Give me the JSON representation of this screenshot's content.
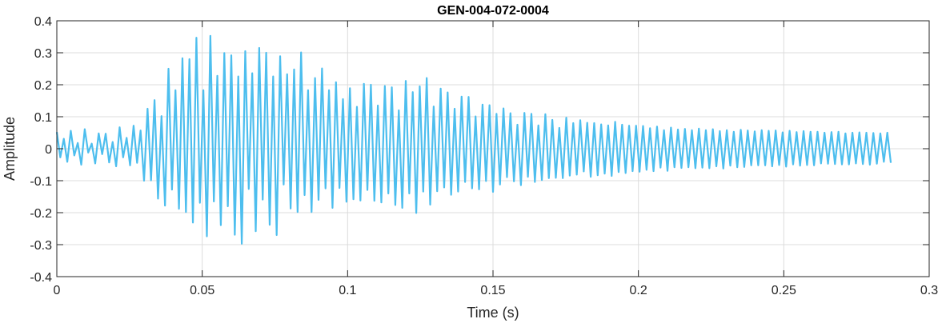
{
  "chart_data": {
    "type": "line",
    "title": "GEN-004-072-0004",
    "xlabel": "Time (s)",
    "ylabel": "Amplitude",
    "xlim": [
      0,
      0.3
    ],
    "ylim": [
      -0.4,
      0.4
    ],
    "xticks": [
      0,
      0.05,
      0.1,
      0.15,
      0.2,
      0.25,
      0.3
    ],
    "xtick_labels": [
      "0",
      "0.05",
      "0.1",
      "0.15",
      "0.2",
      "0.25",
      "0.3"
    ],
    "yticks": [
      -0.4,
      -0.3,
      -0.2,
      -0.1,
      0,
      0.1,
      0.2,
      0.3,
      0.4
    ],
    "ytick_labels": [
      "-0.4",
      "-0.3",
      "-0.2",
      "-0.1",
      "0",
      "0.1",
      "0.2",
      "0.3",
      "0.4"
    ],
    "grid": true,
    "box": true,
    "line_color": "#4DBEEE",
    "series": [
      {
        "x": [
          0.0,
          0.0012,
          0.0024,
          0.0036,
          0.0048,
          0.006,
          0.0072,
          0.0084,
          0.0096,
          0.0108,
          0.012,
          0.0132,
          0.0144,
          0.0156,
          0.0168,
          0.018,
          0.0192,
          0.0204,
          0.0216,
          0.0228,
          0.024,
          0.0252,
          0.0264,
          0.0276,
          0.0288,
          0.03,
          0.0312,
          0.0324,
          0.0336,
          0.0348,
          0.036,
          0.0372,
          0.0384,
          0.0396,
          0.0408,
          0.042,
          0.0432,
          0.0444,
          0.0456,
          0.0468,
          0.048,
          0.0492,
          0.0504,
          0.0516,
          0.0528,
          0.054,
          0.0552,
          0.0564,
          0.0576,
          0.0588,
          0.06,
          0.0612,
          0.0624,
          0.0636,
          0.0648,
          0.066,
          0.0672,
          0.0684,
          0.0696,
          0.0708,
          0.072,
          0.0732,
          0.0744,
          0.0756,
          0.0768,
          0.078,
          0.0792,
          0.0804,
          0.0816,
          0.0828,
          0.084,
          0.0852,
          0.0864,
          0.0876,
          0.0888,
          0.09,
          0.0912,
          0.0924,
          0.0936,
          0.0948,
          0.096,
          0.0972,
          0.0984,
          0.0996,
          0.1008,
          0.102,
          0.1032,
          0.1044,
          0.1056,
          0.1068,
          0.108,
          0.1092,
          0.1104,
          0.1116,
          0.1128,
          0.114,
          0.1152,
          0.1164,
          0.1176,
          0.1188,
          0.12,
          0.1212,
          0.1224,
          0.1236,
          0.1248,
          0.126,
          0.1272,
          0.1284,
          0.1296,
          0.1308,
          0.132,
          0.1332,
          0.1344,
          0.1356,
          0.1368,
          0.138,
          0.1392,
          0.1404,
          0.1416,
          0.1428,
          0.144,
          0.1452,
          0.1464,
          0.1476,
          0.1488,
          0.15,
          0.1512,
          0.1524,
          0.1536,
          0.1548,
          0.156,
          0.1572,
          0.1584,
          0.1596,
          0.1608,
          0.162,
          0.1632,
          0.1644,
          0.1656,
          0.1668,
          0.168,
          0.1692,
          0.1704,
          0.1716,
          0.1728,
          0.174,
          0.1752,
          0.1764,
          0.1776,
          0.1788,
          0.18,
          0.1812,
          0.1824,
          0.1836,
          0.1848,
          0.186,
          0.1872,
          0.1884,
          0.1896,
          0.1908,
          0.192,
          0.1932,
          0.1944,
          0.1956,
          0.1968,
          0.198,
          0.1992,
          0.2004,
          0.2016,
          0.2028,
          0.204,
          0.2052,
          0.2064,
          0.2076,
          0.2088,
          0.21,
          0.2112,
          0.2124,
          0.2136,
          0.2148,
          0.216,
          0.2172,
          0.2184,
          0.2196,
          0.2208,
          0.222,
          0.2232,
          0.2244,
          0.2256,
          0.2268,
          0.228,
          0.2292,
          0.2304,
          0.2316,
          0.2328,
          0.234,
          0.2352,
          0.2364,
          0.2376,
          0.2388,
          0.24,
          0.2412,
          0.2424,
          0.2436,
          0.2448,
          0.246,
          0.2472,
          0.2484,
          0.2496,
          0.2508,
          0.252,
          0.2532,
          0.2544,
          0.2556,
          0.2568,
          0.258,
          0.2592,
          0.2604,
          0.2616,
          0.2628,
          0.264,
          0.2652,
          0.2664,
          0.2676,
          0.2688,
          0.27,
          0.2712,
          0.2724,
          0.2736,
          0.2748,
          0.276,
          0.2772,
          0.2784,
          0.2796,
          0.2808,
          0.282,
          0.2832,
          0.2844,
          0.2856,
          0.2868
        ],
        "y": [
          0.052,
          -0.027,
          0.031,
          -0.041,
          0.056,
          -0.021,
          0.018,
          -0.05,
          0.061,
          -0.012,
          0.016,
          -0.046,
          0.048,
          -0.017,
          0.047,
          -0.043,
          0.021,
          -0.055,
          0.067,
          -0.027,
          0.034,
          -0.052,
          0.072,
          -0.044,
          0.057,
          -0.1,
          0.125,
          -0.099,
          0.152,
          -0.156,
          0.102,
          -0.178,
          0.25,
          -0.128,
          0.183,
          -0.188,
          0.283,
          -0.198,
          0.28,
          -0.231,
          0.347,
          -0.169,
          0.183,
          -0.274,
          0.353,
          -0.165,
          0.228,
          -0.239,
          0.299,
          -0.18,
          0.292,
          -0.269,
          0.226,
          -0.297,
          0.305,
          -0.126,
          0.236,
          -0.258,
          0.315,
          -0.159,
          0.3,
          -0.238,
          0.226,
          -0.27,
          0.289,
          -0.112,
          0.233,
          -0.187,
          0.248,
          -0.198,
          0.301,
          -0.145,
          0.183,
          -0.198,
          0.221,
          -0.16,
          0.251,
          -0.124,
          0.183,
          -0.185,
          0.208,
          -0.123,
          0.155,
          -0.166,
          0.189,
          -0.158,
          0.131,
          -0.162,
          0.203,
          -0.129,
          0.2,
          -0.163,
          0.135,
          -0.168,
          0.196,
          -0.14,
          0.192,
          -0.176,
          0.12,
          -0.185,
          0.212,
          -0.14,
          0.177,
          -0.201,
          0.195,
          -0.134,
          0.221,
          -0.175,
          0.132,
          -0.133,
          0.188,
          -0.121,
          0.176,
          -0.144,
          0.125,
          -0.134,
          0.163,
          -0.104,
          0.162,
          -0.124,
          0.101,
          -0.127,
          0.138,
          -0.101,
          0.136,
          -0.135,
          0.109,
          -0.112,
          0.126,
          -0.089,
          0.111,
          -0.102,
          0.075,
          -0.114,
          0.112,
          -0.088,
          0.109,
          -0.104,
          0.073,
          -0.098,
          0.108,
          -0.092,
          0.09,
          -0.091,
          0.065,
          -0.092,
          0.097,
          -0.084,
          0.08,
          -0.081,
          0.089,
          -0.071,
          0.081,
          -0.088,
          0.08,
          -0.083,
          0.076,
          -0.078,
          0.073,
          -0.085,
          0.084,
          -0.073,
          0.075,
          -0.076,
          0.072,
          -0.07,
          0.072,
          -0.072,
          0.071,
          -0.066,
          0.064,
          -0.07,
          0.069,
          -0.059,
          0.058,
          -0.069,
          0.066,
          -0.058,
          0.06,
          -0.06,
          0.062,
          -0.058,
          0.058,
          -0.061,
          0.063,
          -0.059,
          0.058,
          -0.061,
          0.061,
          -0.055,
          0.055,
          -0.062,
          0.058,
          -0.053,
          0.053,
          -0.058,
          0.059,
          -0.057,
          0.057,
          -0.052,
          0.054,
          -0.052,
          0.058,
          -0.052,
          0.056,
          -0.055,
          0.057,
          -0.051,
          0.051,
          -0.056,
          0.056,
          -0.049,
          0.052,
          -0.053,
          0.055,
          -0.051,
          0.053,
          -0.052,
          0.053,
          -0.046,
          0.05,
          -0.047,
          0.052,
          -0.048,
          0.053,
          -0.049,
          0.048,
          -0.049,
          0.05,
          -0.046,
          0.051,
          -0.048,
          0.05,
          -0.05,
          0.049,
          -0.047,
          0.048,
          -0.041,
          0.05,
          -0.044
        ]
      }
    ]
  }
}
